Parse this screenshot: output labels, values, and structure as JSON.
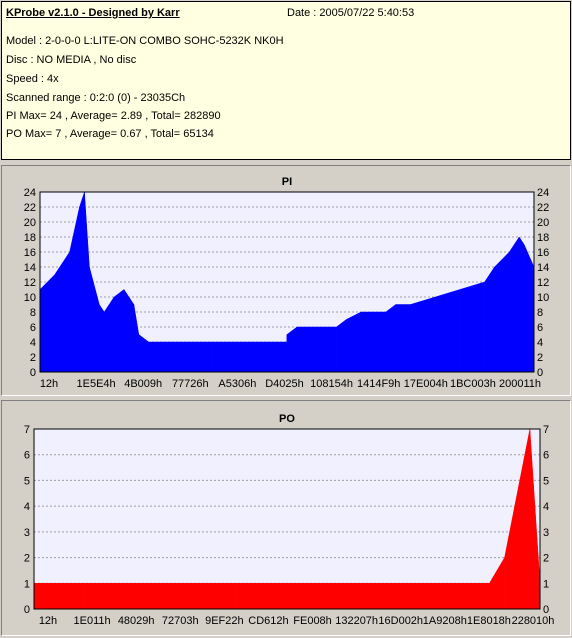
{
  "info": {
    "title": "KProbe v2.1.0 - Designed by Karr",
    "date": "Date : 2005/07/22 5:40:53",
    "lines": [
      "Model : 2-0-0-0 L:LITE-ON COMBO SOHC-5232K NK0H",
      "Disc : NO MEDIA , No disc",
      "Speed : 4x",
      "Scanned range : 0:2:0 (0) - 23035Ch",
      "PI Max= 24 , Average= 2.89 , Total= 282890",
      "PO Max= 7 , Average= 0.67 , Total= 65134"
    ]
  },
  "chart_data": [
    {
      "type": "bar",
      "title": "PI",
      "color": "#0000ff",
      "ylim": [
        0,
        24
      ],
      "yticks": [
        0,
        2,
        4,
        6,
        8,
        10,
        12,
        14,
        16,
        18,
        20,
        22,
        24
      ],
      "xtick_labels": [
        "12h",
        "1E5E4h",
        "4B009h",
        "77726h",
        "A5306h",
        "D4025h",
        "108154h",
        "1414F9h",
        "17E004h",
        "1BC003h",
        "200011h"
      ],
      "x": [
        0,
        0.03,
        0.06,
        0.08,
        0.09,
        0.1,
        0.12,
        0.13,
        0.15,
        0.17,
        0.19,
        0.2,
        0.22,
        0.25,
        0.3,
        0.35,
        0.4,
        0.45,
        0.5,
        0.5,
        0.52,
        0.55,
        0.6,
        0.62,
        0.65,
        0.7,
        0.72,
        0.75,
        0.8,
        0.85,
        0.9,
        0.92,
        0.95,
        0.97,
        0.98,
        1.0
      ],
      "values": [
        11,
        13,
        16,
        22,
        24,
        14,
        9,
        8,
        10,
        11,
        9,
        5,
        4,
        4,
        4,
        4,
        4,
        4,
        4,
        5,
        6,
        6,
        6,
        7,
        8,
        8,
        9,
        9,
        10,
        11,
        12,
        14,
        16,
        18,
        17,
        14
      ]
    },
    {
      "type": "bar",
      "title": "PO",
      "color": "#ff0000",
      "ylim": [
        0,
        7
      ],
      "yticks": [
        0,
        1,
        2,
        3,
        4,
        5,
        6,
        7
      ],
      "xtick_labels": [
        "12h",
        "1E011h",
        "48029h",
        "72703h",
        "9EF22h",
        "CD612h",
        "FE008h",
        "132207h",
        "16D002h",
        "1A9208h",
        "1E8018h",
        "228010h"
      ],
      "x": [
        0,
        0.05,
        0.1,
        0.2,
        0.3,
        0.4,
        0.5,
        0.6,
        0.7,
        0.8,
        0.88,
        0.9,
        0.93,
        0.95,
        0.96,
        0.97,
        0.98,
        0.99,
        1.0
      ],
      "values": [
        1,
        1,
        1,
        1,
        1,
        1,
        1,
        1,
        1,
        1,
        1,
        1,
        2,
        4,
        5,
        6,
        7,
        4,
        1
      ]
    }
  ]
}
